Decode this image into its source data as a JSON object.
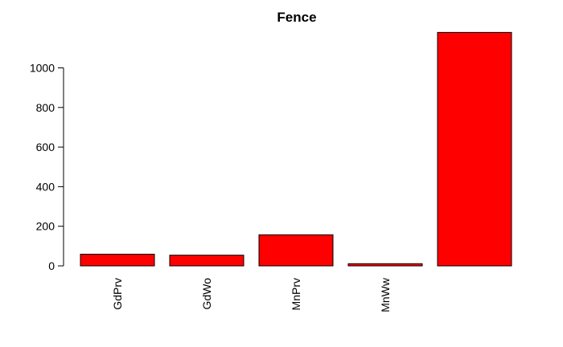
{
  "chart_data": {
    "type": "bar",
    "title": "Fence",
    "xlabel": "",
    "ylabel": "",
    "categories": [
      "GdPrv",
      "GdWo",
      "MnPrv",
      "MnWw",
      ""
    ],
    "values": [
      59,
      54,
      157,
      11,
      1179
    ],
    "ylim": [
      0,
      1179
    ],
    "yticks": [
      0,
      200,
      400,
      600,
      800,
      1000
    ],
    "bar_color": "#ff0000",
    "grid": false,
    "legend": "none"
  }
}
